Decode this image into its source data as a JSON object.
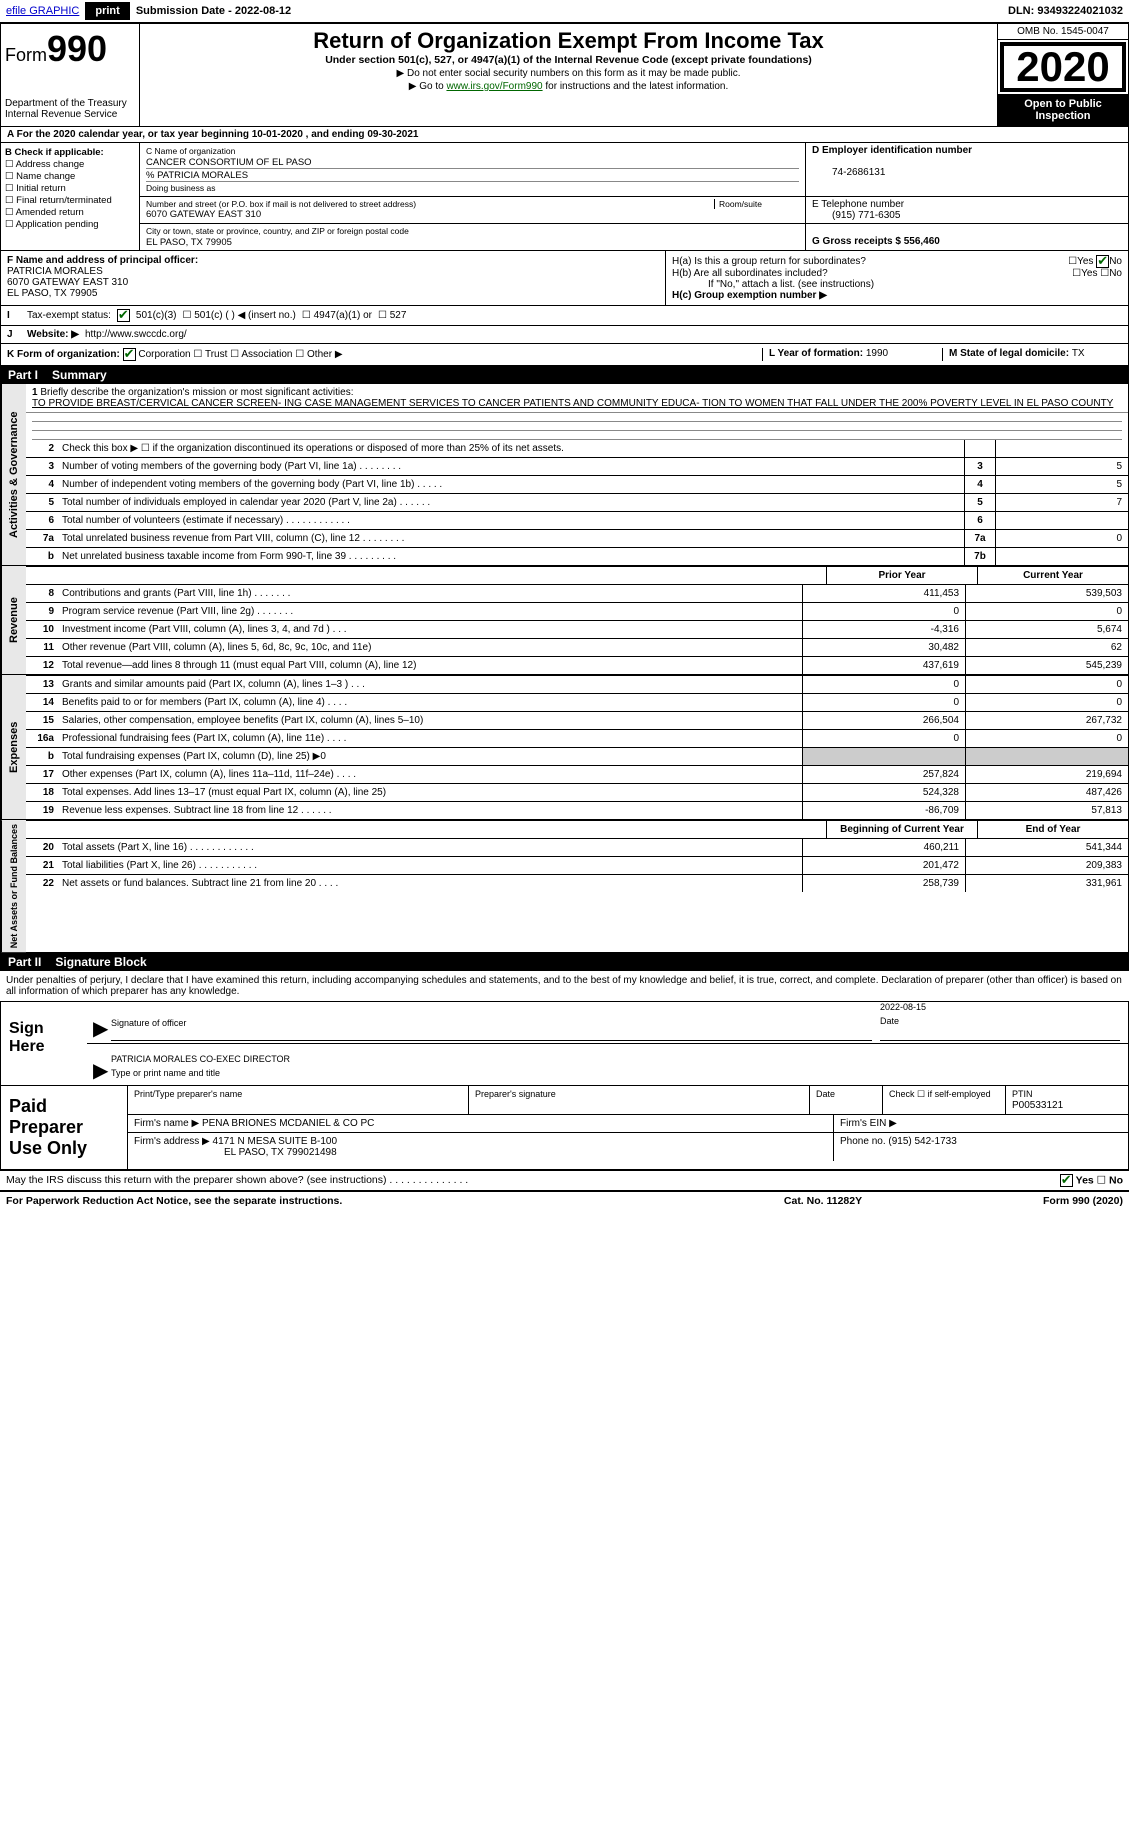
{
  "top": {
    "efile": "efile GRAPHIC",
    "print": "print",
    "sub_date_label": "Submission Date - ",
    "sub_date": "2022-08-12",
    "dln": "DLN: 93493224021032"
  },
  "header": {
    "form_prefix": "Form",
    "form_num": "990",
    "title": "Return of Organization Exempt From Income Tax",
    "subtitle": "Under section 501(c), 527, or 4947(a)(1) of the Internal Revenue Code (except private foundations)",
    "line1": "▶ Do not enter social security numbers on this form as it may be made public.",
    "line2_pre": "▶ Go to ",
    "line2_link": "www.irs.gov/Form990",
    "line2_post": " for instructions and the latest information.",
    "dept": "Department of the Treasury\nInternal Revenue Service",
    "omb": "OMB No. 1545-0047",
    "year": "2020",
    "open": "Open to Public Inspection"
  },
  "a_line": "A For the 2020 calendar year, or tax year beginning 10-01-2020    , and ending 09-30-2021",
  "box_b": {
    "hdr": "B Check if applicable:",
    "items": [
      "Address change",
      "Name change",
      "Initial return",
      "Final return/terminated",
      "Amended return",
      "Application pending"
    ]
  },
  "box_c": {
    "name_label": "C Name of organization",
    "name": "CANCER CONSORTIUM OF EL PASO",
    "care_of": "% PATRICIA MORALES",
    "dba_label": "Doing business as",
    "addr_label": "Number and street (or P.O. box if mail is not delivered to street address)",
    "room_label": "Room/suite",
    "addr": "6070 GATEWAY EAST 310",
    "city_label": "City or town, state or province, country, and ZIP or foreign postal code",
    "city": "EL PASO, TX  79905"
  },
  "box_d": {
    "label": "D Employer identification number",
    "val": "74-2686131"
  },
  "box_e": {
    "label": "E Telephone number",
    "val": "(915) 771-6305"
  },
  "box_g": {
    "label": "G Gross receipts $ ",
    "val": "556,460"
  },
  "box_f": {
    "label": "F Name and address of principal officer:",
    "name": "PATRICIA MORALES",
    "addr": "6070 GATEWAY EAST 310",
    "city": "EL PASO, TX  79905"
  },
  "box_h": {
    "a": "H(a)  Is this a group return for subordinates?",
    "a_yes": "Yes",
    "a_no": "No",
    "b": "H(b)  Are all subordinates included?",
    "b_note": "If \"No,\" attach a list. (see instructions)",
    "c": "H(c)  Group exemption number ▶"
  },
  "line_i": {
    "lead": "I",
    "label": "Tax-exempt status:",
    "opt1": "501(c)(3)",
    "opt2": "501(c) (   ) ◀ (insert no.)",
    "opt3": "4947(a)(1) or",
    "opt4": "527"
  },
  "line_j": {
    "lead": "J",
    "label": "Website: ▶",
    "val": " http://www.swccdc.org/"
  },
  "line_k": {
    "label": "K Form of organization:",
    "opts": [
      "Corporation",
      "Trust",
      "Association",
      "Other ▶"
    ],
    "l_label": "L Year of formation: ",
    "l_val": "1990",
    "m_label": "M State of legal domicile: ",
    "m_val": "TX"
  },
  "part1": {
    "num": "Part I",
    "title": "Summary"
  },
  "mission": {
    "lead": "1",
    "label": "Briefly describe the organization's mission or most significant activities:",
    "text": "TO PROVIDE BREAST/CERVICAL CANCER SCREEN- ING CASE MANAGEMENT SERVICES TO CANCER PATIENTS AND COMMUNITY EDUCA- TION TO WOMEN THAT FALL UNDER THE 200% POVERTY LEVEL IN EL PASO COUNTY"
  },
  "gov_rows": [
    {
      "ln": "2",
      "txt": "Check this box ▶ ☐  if the organization discontinued its operations or disposed of more than 25% of its net assets.",
      "box": "",
      "val": ""
    },
    {
      "ln": "3",
      "txt": "Number of voting members of the governing body (Part VI, line 1a)   .    .    .    .    .    .    .    .",
      "box": "3",
      "val": "5"
    },
    {
      "ln": "4",
      "txt": "Number of independent voting members of the governing body (Part VI, line 1b)   .    .    .    .    .",
      "box": "4",
      "val": "5"
    },
    {
      "ln": "5",
      "txt": "Total number of individuals employed in calendar year 2020 (Part V, line 2a)   .    .    .    .    .    .",
      "box": "5",
      "val": "7"
    },
    {
      "ln": "6",
      "txt": "Total number of volunteers (estimate if necessary)   .    .    .    .    .    .    .    .    .    .    .    .",
      "box": "6",
      "val": ""
    },
    {
      "ln": "7a",
      "txt": "Total unrelated business revenue from Part VIII, column (C), line 12   .    .    .    .    .    .    .    .",
      "box": "7a",
      "val": "0"
    },
    {
      "ln": "b",
      "txt": "Net unrelated business taxable income from Form 990-T, line 39   .    .    .    .    .    .    .    .    .",
      "box": "7b",
      "val": ""
    }
  ],
  "col_hdrs": {
    "prior": "Prior Year",
    "current": "Current Year"
  },
  "revenue": [
    {
      "ln": "8",
      "txt": "Contributions and grants (Part VIII, line 1h)   .    .    .    .    .    .    .",
      "v1": "411,453",
      "v2": "539,503"
    },
    {
      "ln": "9",
      "txt": "Program service revenue (Part VIII, line 2g)   .    .    .    .    .    .    .",
      "v1": "0",
      "v2": "0"
    },
    {
      "ln": "10",
      "txt": "Investment income (Part VIII, column (A), lines 3, 4, and 7d )   .    .    .",
      "v1": "-4,316",
      "v2": "5,674"
    },
    {
      "ln": "11",
      "txt": "Other revenue (Part VIII, column (A), lines 5, 6d, 8c, 9c, 10c, and 11e)",
      "v1": "30,482",
      "v2": "62"
    },
    {
      "ln": "12",
      "txt": "Total revenue—add lines 8 through 11 (must equal Part VIII, column (A), line 12)",
      "v1": "437,619",
      "v2": "545,239"
    }
  ],
  "expenses": [
    {
      "ln": "13",
      "txt": "Grants and similar amounts paid (Part IX, column (A), lines 1–3 )   .    .    .",
      "v1": "0",
      "v2": "0"
    },
    {
      "ln": "14",
      "txt": "Benefits paid to or for members (Part IX, column (A), line 4)   .    .    .    .",
      "v1": "0",
      "v2": "0"
    },
    {
      "ln": "15",
      "txt": "Salaries, other compensation, employee benefits (Part IX, column (A), lines 5–10)",
      "v1": "266,504",
      "v2": "267,732"
    },
    {
      "ln": "16a",
      "txt": "Professional fundraising fees (Part IX, column (A), line 11e)   .    .    .    .",
      "v1": "0",
      "v2": "0"
    },
    {
      "ln": "b",
      "txt": "Total fundraising expenses (Part IX, column (D), line 25) ▶0",
      "v1": "GRAY",
      "v2": "GRAY"
    },
    {
      "ln": "17",
      "txt": "Other expenses (Part IX, column (A), lines 11a–11d, 11f–24e)   .    .    .    .",
      "v1": "257,824",
      "v2": "219,694"
    },
    {
      "ln": "18",
      "txt": "Total expenses. Add lines 13–17 (must equal Part IX, column (A), line 25)",
      "v1": "524,328",
      "v2": "487,426"
    },
    {
      "ln": "19",
      "txt": "Revenue less expenses. Subtract line 18 from line 12   .    .    .    .    .    .",
      "v1": "-86,709",
      "v2": "57,813"
    }
  ],
  "net_hdrs": {
    "begin": "Beginning of Current Year",
    "end": "End of Year"
  },
  "net": [
    {
      "ln": "20",
      "txt": "Total assets (Part X, line 16)   .    .    .    .    .    .    .    .    .    .    .    .",
      "v1": "460,211",
      "v2": "541,344"
    },
    {
      "ln": "21",
      "txt": "Total liabilities (Part X, line 26)   .    .    .    .    .    .    .    .    .    .    .",
      "v1": "201,472",
      "v2": "209,383"
    },
    {
      "ln": "22",
      "txt": "Net assets or fund balances. Subtract line 21 from line 20   .    .    .    .",
      "v1": "258,739",
      "v2": "331,961"
    }
  ],
  "sides": {
    "gov": "Activities & Governance",
    "rev": "Revenue",
    "exp": "Expenses",
    "net": "Net Assets or Fund Balances"
  },
  "part2": {
    "num": "Part II",
    "title": "Signature Block"
  },
  "sig_text": "Under penalties of perjury, I declare that I have examined this return, including accompanying schedules and statements, and to the best of my knowledge and belief, it is true, correct, and complete. Declaration of preparer (other than officer) is based on all information of which preparer has any knowledge.",
  "sign": {
    "here": "Sign Here",
    "sig_label": "Signature of officer",
    "date_label": "Date",
    "date_val": "2022-08-15",
    "name": "PATRICIA MORALES  CO-EXEC DIRECTOR",
    "name_label": "Type or print name and title"
  },
  "paid": {
    "title": "Paid Preparer Use Only",
    "print_label": "Print/Type preparer's name",
    "sig_label": "Preparer's signature",
    "date_label": "Date",
    "check_label": "Check ☐ if self-employed",
    "ptin_label": "PTIN",
    "ptin": "P00533121",
    "firm_name_label": "Firm's name   ▶ ",
    "firm_name": "PENA BRIONES MCDANIEL & CO PC",
    "firm_ein_label": "Firm's EIN ▶",
    "firm_addr_label": "Firm's address ▶ ",
    "firm_addr1": "4171 N MESA SUITE B-100",
    "firm_addr2": "EL PASO, TX  799021498",
    "phone_label": "Phone no. ",
    "phone": "(915) 542-1733"
  },
  "discuss": {
    "txt": "May the IRS discuss this return with the preparer shown above? (see instructions)   .    .    .    .    .    .    .    .    .    .    .    .    .    .",
    "yes": "Yes",
    "no": "No"
  },
  "footer": {
    "left": "For Paperwork Reduction Act Notice, see the separate instructions.",
    "mid": "Cat. No. 11282Y",
    "right": "Form 990 (2020)"
  },
  "colors": {
    "link_blue": "#0000cc",
    "link_green": "#006600",
    "gray_fill": "#cccccc",
    "side_gray": "#e8e8e8"
  }
}
